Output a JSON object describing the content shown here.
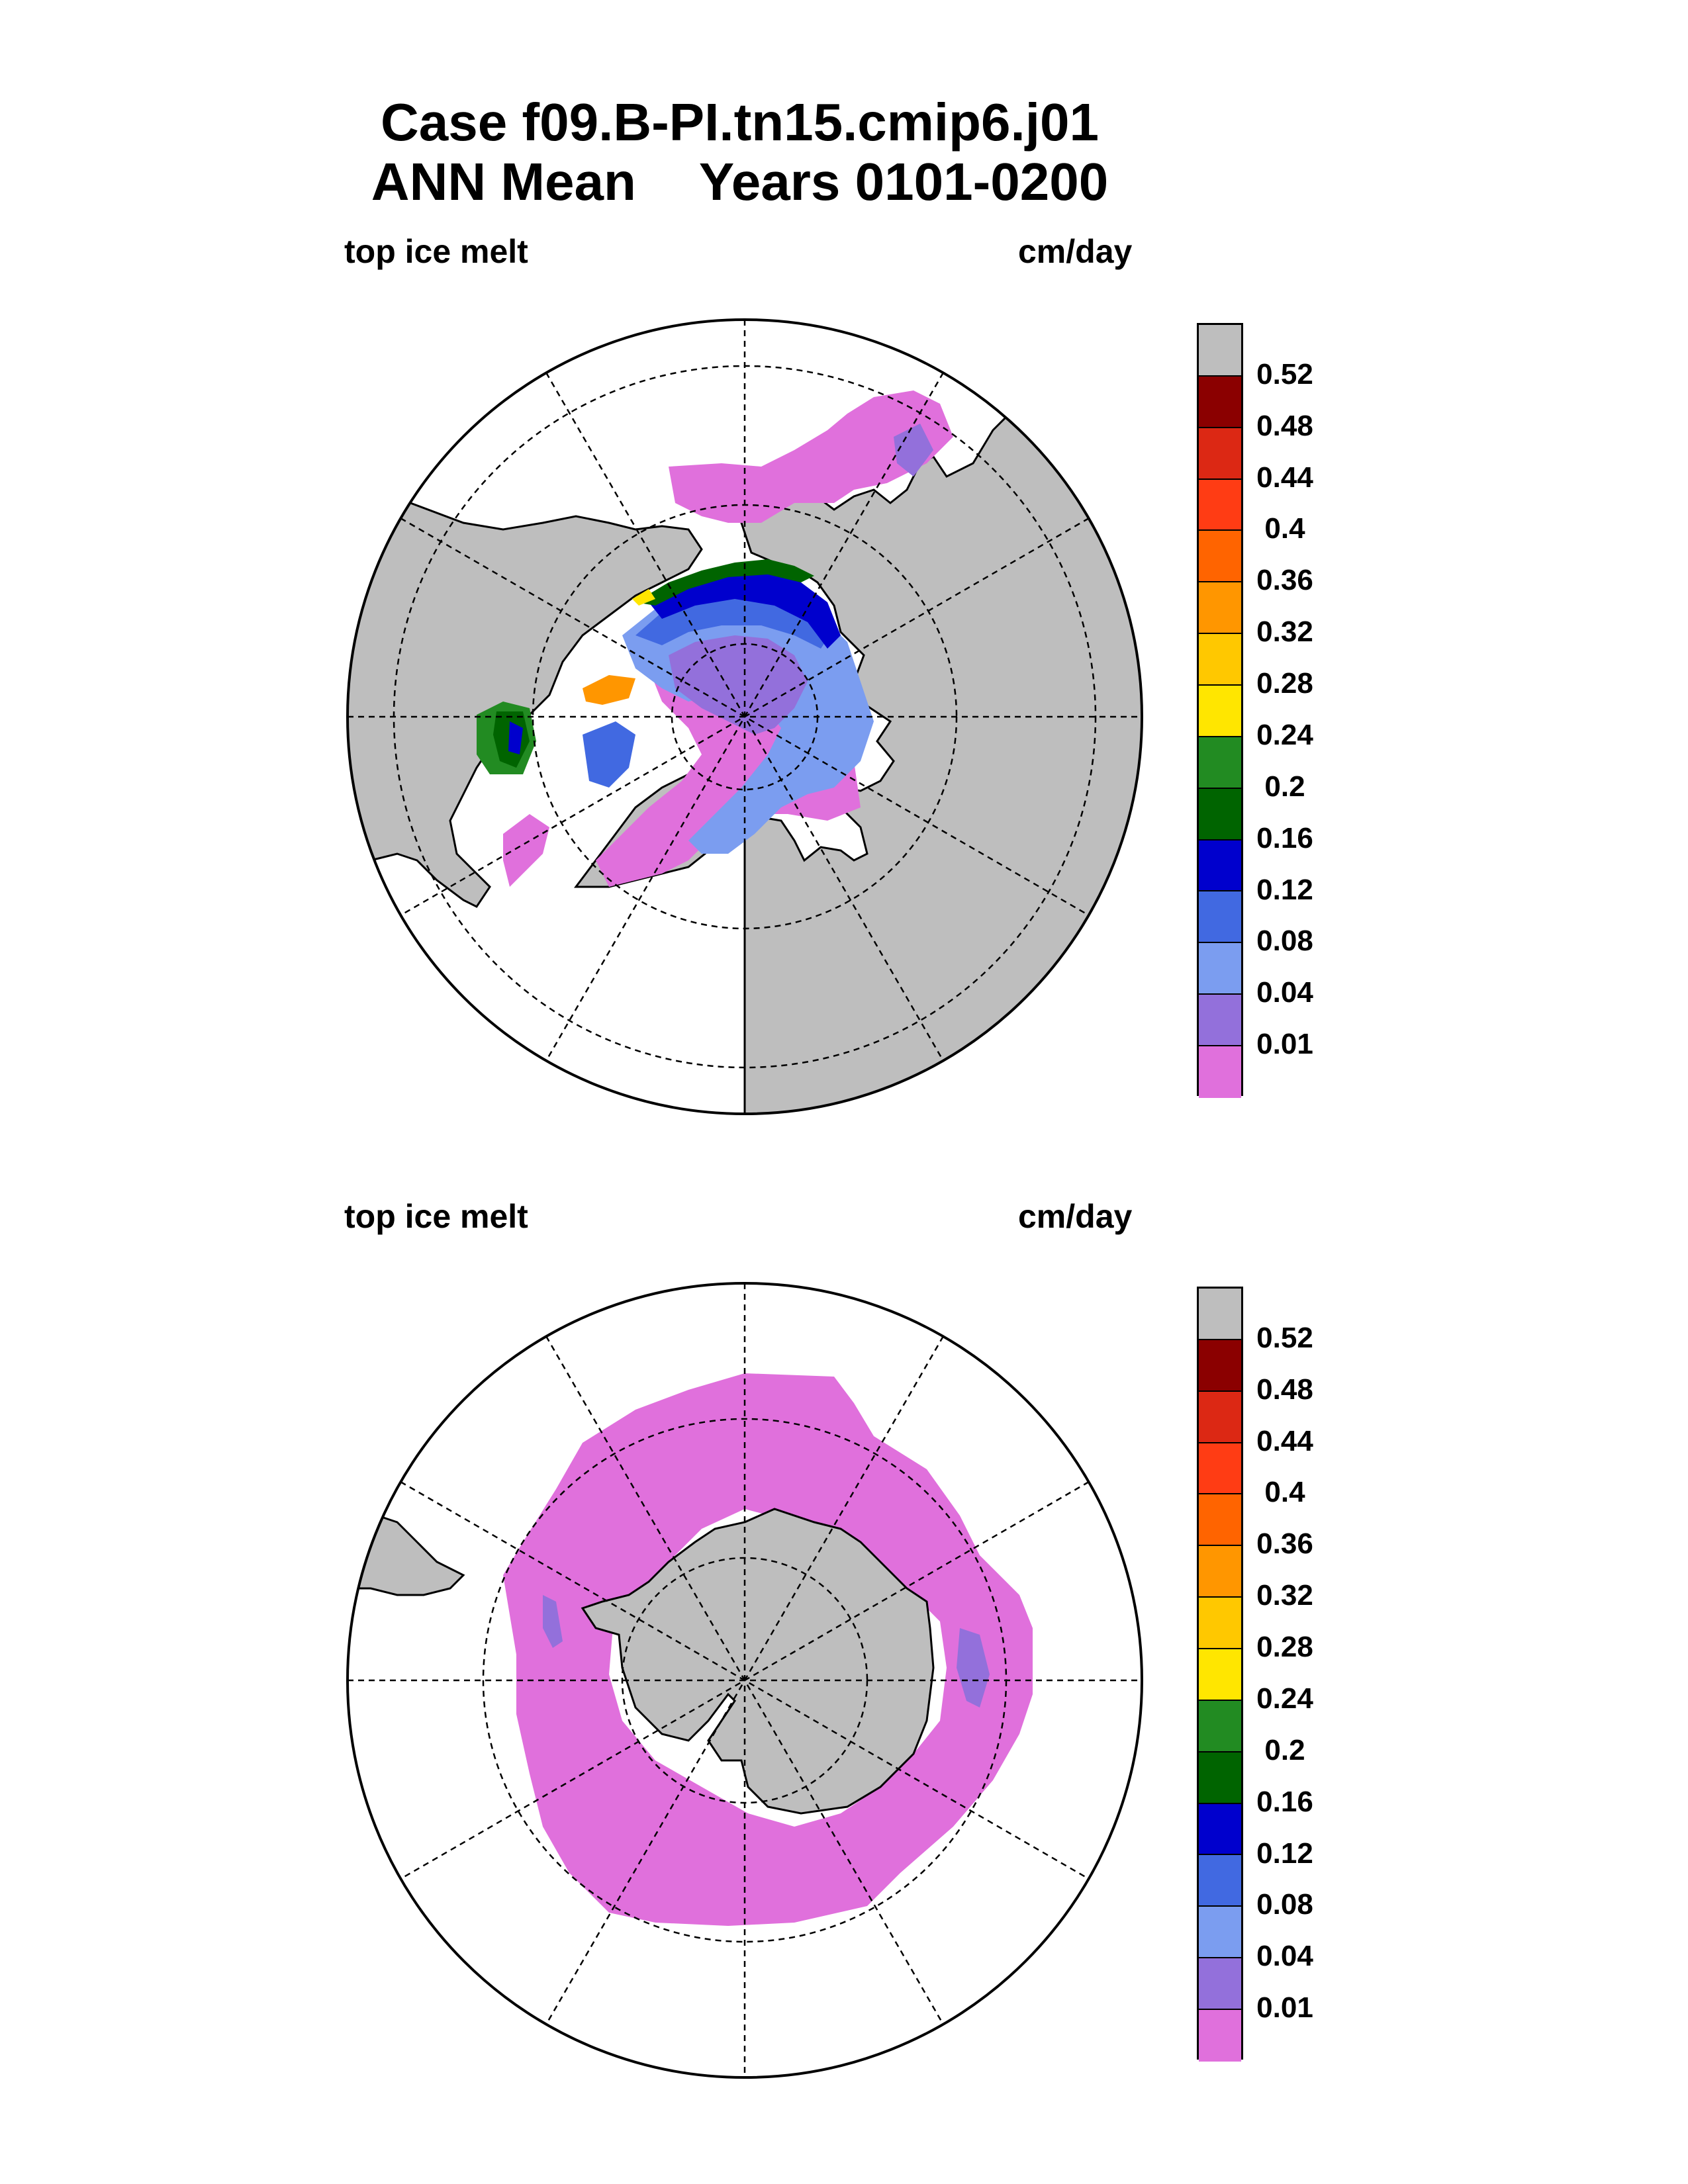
{
  "title": {
    "line1": "Case f09.B-PI.tn15.cmip6.j01",
    "line2_left": "ANN Mean",
    "line2_right": "Years 0101-0200"
  },
  "panels": [
    {
      "variable_label": "top ice melt",
      "units_label": "cm/day",
      "hemisphere": "north"
    },
    {
      "variable_label": "top ice melt",
      "units_label": "cm/day",
      "hemisphere": "south"
    }
  ],
  "colorbar": {
    "levels": [
      "0.52",
      "0.48",
      "0.44",
      "0.4",
      "0.36",
      "0.32",
      "0.28",
      "0.24",
      "0.2",
      "0.16",
      "0.12",
      "0.08",
      "0.04",
      "0.01"
    ],
    "colors": [
      "#bebebe",
      "#8b0000",
      "#dc2814",
      "#ff3c14",
      "#ff6400",
      "#ff9600",
      "#ffc800",
      "#ffe600",
      "#228b22",
      "#006400",
      "#0000cd",
      "#4169e1",
      "#7b9df0",
      "#9370db",
      "#e070dc"
    ]
  },
  "map_colors": {
    "land": "#bebebe",
    "ocean": "#ffffff",
    "coast": "#000000"
  }
}
